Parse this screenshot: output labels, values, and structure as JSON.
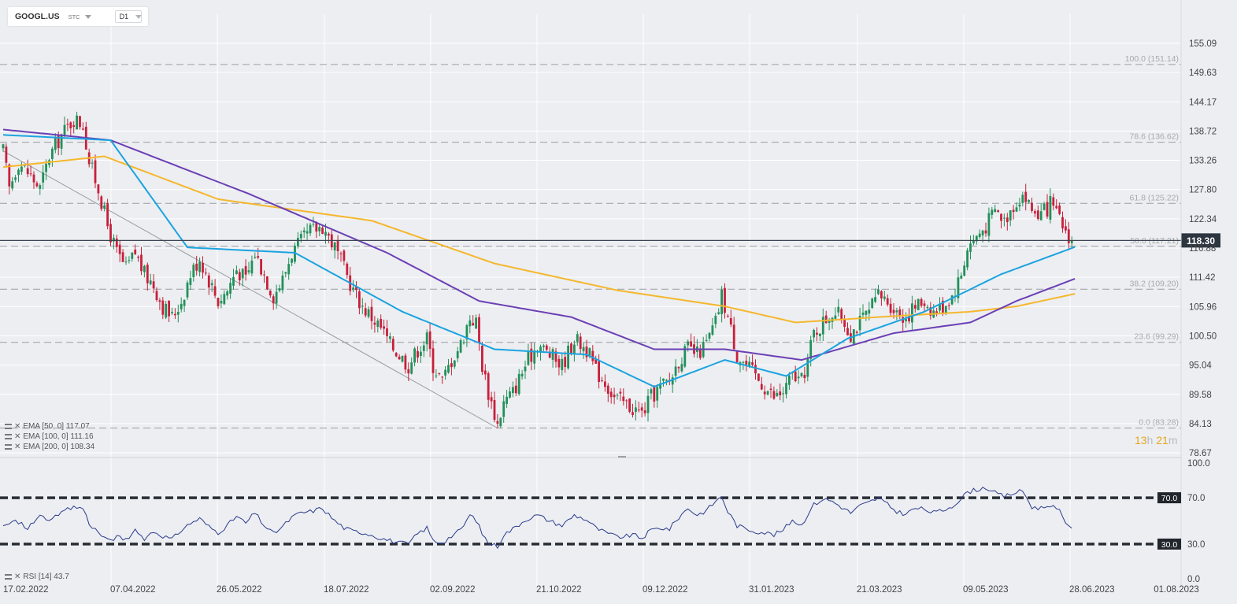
{
  "header": {
    "symbol": "GOOGL.US",
    "market": "STC",
    "timeframe": "D1"
  },
  "indicators": [
    {
      "label": "EMA [50,  0] 117.07",
      "color": "#1aa3e0"
    },
    {
      "label": "EMA [100,  0] 111.16",
      "color": "#6b3fb5"
    },
    {
      "label": "EMA [200,  0] 108.34",
      "color": "#f5b72c"
    }
  ],
  "rsi": {
    "label": "RSI [14] 43.7"
  },
  "countdown": {
    "hours": "13",
    "h_unit": "h",
    "minutes": "21",
    "m_unit": "m"
  },
  "chart_data": {
    "type": "candlestick",
    "price_axis": {
      "ticks": [
        "155.09",
        "149.63",
        "144.17",
        "138.72",
        "133.26",
        "127.80",
        "122.34",
        "116.88",
        "111.42",
        "105.96",
        "100.50",
        "95.04",
        "89.58",
        "84.13",
        "78.67"
      ],
      "current_price": "118.30"
    },
    "x_axis": {
      "labels": [
        "17.02.2022",
        "07.04.2022",
        "26.05.2022",
        "18.07.2022",
        "02.09.2022",
        "21.10.2022",
        "09.12.2022",
        "31.01.2023",
        "21.03.2023",
        "09.05.2023",
        "28.06.2023",
        "01.08.2023"
      ]
    },
    "fibonacci": [
      {
        "label": "100.0 (151.14)",
        "price": 151.14
      },
      {
        "label": "78.6 (136.62)",
        "price": 136.62
      },
      {
        "label": "61.8 (125.22)",
        "price": 125.22
      },
      {
        "label": "50.0 (117.21)",
        "price": 117.21
      },
      {
        "label": "38.2 (109.20)",
        "price": 109.2
      },
      {
        "label": "23.6 (99.29)",
        "price": 99.29
      },
      {
        "label": "0.0 (83.28)",
        "price": 83.28
      }
    ],
    "close_path": [
      [
        0,
        135
      ],
      [
        2,
        128
      ],
      [
        5,
        133
      ],
      [
        8,
        131
      ],
      [
        12,
        128
      ],
      [
        15,
        134
      ],
      [
        19,
        138
      ],
      [
        23,
        141
      ],
      [
        26,
        140
      ],
      [
        28,
        133
      ],
      [
        31,
        128
      ],
      [
        34,
        121
      ],
      [
        37,
        116
      ],
      [
        40,
        113
      ],
      [
        43,
        116
      ],
      [
        46,
        112
      ],
      [
        49,
        110
      ],
      [
        52,
        106
      ],
      [
        55,
        104
      ],
      [
        58,
        107
      ],
      [
        61,
        112
      ],
      [
        64,
        115
      ],
      [
        67,
        111
      ],
      [
        70,
        107
      ],
      [
        73,
        109
      ],
      [
        76,
        113
      ],
      [
        79,
        111
      ],
      [
        82,
        116
      ],
      [
        85,
        112
      ],
      [
        88,
        108
      ],
      [
        91,
        111
      ],
      [
        94,
        116
      ],
      [
        97,
        118
      ],
      [
        100,
        120
      ],
      [
        104,
        121
      ],
      [
        108,
        117
      ],
      [
        111,
        113
      ],
      [
        114,
        109
      ],
      [
        117,
        106
      ],
      [
        120,
        104
      ],
      [
        123,
        102
      ],
      [
        126,
        99
      ],
      [
        129,
        97
      ],
      [
        132,
        95
      ],
      [
        135,
        98
      ],
      [
        138,
        100
      ],
      [
        140,
        95
      ],
      [
        143,
        92
      ],
      [
        146,
        96
      ],
      [
        149,
        99
      ],
      [
        152,
        104
      ],
      [
        154,
        103
      ],
      [
        156,
        95
      ],
      [
        158,
        90
      ],
      [
        160,
        86
      ],
      [
        161,
        84
      ],
      [
        163,
        88
      ],
      [
        166,
        90
      ],
      [
        170,
        95
      ],
      [
        174,
        99
      ],
      [
        178,
        97
      ],
      [
        182,
        95
      ],
      [
        186,
        100
      ],
      [
        190,
        98
      ],
      [
        193,
        94
      ],
      [
        196,
        92
      ],
      [
        199,
        89
      ],
      [
        202,
        88
      ],
      [
        205,
        87
      ],
      [
        208,
        86
      ],
      [
        211,
        89
      ],
      [
        214,
        91
      ],
      [
        217,
        92
      ],
      [
        220,
        96
      ],
      [
        223,
        98
      ],
      [
        226,
        97
      ],
      [
        229,
        99
      ],
      [
        232,
        103
      ],
      [
        234,
        108
      ],
      [
        236,
        104
      ],
      [
        239,
        97
      ],
      [
        242,
        95
      ],
      [
        245,
        93
      ],
      [
        248,
        91
      ],
      [
        251,
        89
      ],
      [
        254,
        90
      ],
      [
        257,
        93
      ],
      [
        260,
        92
      ],
      [
        262,
        96
      ],
      [
        264,
        101
      ],
      [
        267,
        103
      ],
      [
        270,
        105
      ],
      [
        273,
        104
      ],
      [
        276,
        101
      ],
      [
        279,
        103
      ],
      [
        282,
        105
      ],
      [
        285,
        108
      ],
      [
        288,
        107
      ],
      [
        291,
        105
      ],
      [
        294,
        104
      ],
      [
        297,
        106
      ],
      [
        300,
        107
      ],
      [
        303,
        105
      ],
      [
        306,
        106
      ],
      [
        309,
        108
      ],
      [
        312,
        112
      ],
      [
        314,
        117
      ],
      [
        317,
        119
      ],
      [
        320,
        121
      ],
      [
        323,
        124
      ],
      [
        326,
        122
      ],
      [
        329,
        125
      ],
      [
        332,
        127
      ],
      [
        335,
        124
      ],
      [
        338,
        123
      ],
      [
        341,
        125
      ],
      [
        344,
        122
      ],
      [
        346,
        120
      ],
      [
        348,
        118.3
      ]
    ],
    "ema_values": {
      "ema50": [
        [
          0,
          138
        ],
        [
          35,
          137
        ],
        [
          60,
          117
        ],
        [
          95,
          116
        ],
        [
          130,
          105
        ],
        [
          160,
          98
        ],
        [
          190,
          97
        ],
        [
          212,
          91
        ],
        [
          235,
          96
        ],
        [
          255,
          93
        ],
        [
          275,
          100
        ],
        [
          300,
          105
        ],
        [
          325,
          112
        ],
        [
          349,
          117.07
        ]
      ],
      "ema100": [
        [
          0,
          139
        ],
        [
          35,
          137
        ],
        [
          80,
          127
        ],
        [
          125,
          116
        ],
        [
          155,
          107
        ],
        [
          185,
          104
        ],
        [
          212,
          98
        ],
        [
          235,
          98
        ],
        [
          260,
          96
        ],
        [
          290,
          101
        ],
        [
          315,
          103
        ],
        [
          330,
          107
        ],
        [
          349,
          111.16
        ]
      ],
      "ema200": [
        [
          0,
          132
        ],
        [
          33,
          134
        ],
        [
          70,
          126
        ],
        [
          120,
          122
        ],
        [
          160,
          114
        ],
        [
          200,
          109
        ],
        [
          235,
          106
        ],
        [
          258,
          103
        ],
        [
          285,
          104
        ],
        [
          315,
          105
        ],
        [
          330,
          106
        ],
        [
          349,
          108.34
        ]
      ]
    },
    "rsi_values": [
      [
        0,
        45
      ],
      [
        4,
        50
      ],
      [
        8,
        44
      ],
      [
        12,
        54
      ],
      [
        16,
        51
      ],
      [
        19,
        57
      ],
      [
        23,
        62
      ],
      [
        26,
        61
      ],
      [
        28,
        48
      ],
      [
        31,
        40
      ],
      [
        34,
        33
      ],
      [
        37,
        36
      ],
      [
        40,
        34
      ],
      [
        43,
        41
      ],
      [
        46,
        35
      ],
      [
        49,
        41
      ],
      [
        52,
        37
      ],
      [
        55,
        34
      ],
      [
        58,
        42
      ],
      [
        61,
        48
      ],
      [
        64,
        52
      ],
      [
        67,
        45
      ],
      [
        70,
        40
      ],
      [
        73,
        46
      ],
      [
        76,
        54
      ],
      [
        79,
        48
      ],
      [
        82,
        57
      ],
      [
        85,
        46
      ],
      [
        88,
        39
      ],
      [
        91,
        45
      ],
      [
        94,
        53
      ],
      [
        97,
        57
      ],
      [
        100,
        58
      ],
      [
        104,
        61
      ],
      [
        108,
        50
      ],
      [
        111,
        44
      ],
      [
        114,
        41
      ],
      [
        117,
        40
      ],
      [
        120,
        38
      ],
      [
        123,
        35
      ],
      [
        126,
        33
      ],
      [
        129,
        31
      ],
      [
        132,
        30
      ],
      [
        135,
        39
      ],
      [
        138,
        44
      ],
      [
        140,
        33
      ],
      [
        143,
        31
      ],
      [
        146,
        37
      ],
      [
        149,
        42
      ],
      [
        152,
        55
      ],
      [
        154,
        51
      ],
      [
        156,
        39
      ],
      [
        158,
        31
      ],
      [
        160,
        29
      ],
      [
        161,
        28
      ],
      [
        163,
        38
      ],
      [
        166,
        43
      ],
      [
        170,
        51
      ],
      [
        174,
        55
      ],
      [
        178,
        50
      ],
      [
        182,
        46
      ],
      [
        186,
        55
      ],
      [
        190,
        51
      ],
      [
        193,
        44
      ],
      [
        196,
        40
      ],
      [
        199,
        37
      ],
      [
        202,
        36
      ],
      [
        205,
        38
      ],
      [
        208,
        35
      ],
      [
        211,
        42
      ],
      [
        214,
        44
      ],
      [
        217,
        43
      ],
      [
        220,
        53
      ],
      [
        223,
        61
      ],
      [
        226,
        55
      ],
      [
        229,
        59
      ],
      [
        232,
        67
      ],
      [
        234,
        71
      ],
      [
        236,
        58
      ],
      [
        239,
        46
      ],
      [
        242,
        43
      ],
      [
        245,
        41
      ],
      [
        248,
        40
      ],
      [
        251,
        38
      ],
      [
        254,
        42
      ],
      [
        257,
        51
      ],
      [
        260,
        46
      ],
      [
        262,
        56
      ],
      [
        264,
        64
      ],
      [
        267,
        69
      ],
      [
        270,
        67
      ],
      [
        273,
        62
      ],
      [
        276,
        57
      ],
      [
        279,
        63
      ],
      [
        282,
        66
      ],
      [
        285,
        70
      ],
      [
        288,
        64
      ],
      [
        291,
        58
      ],
      [
        294,
        56
      ],
      [
        297,
        61
      ],
      [
        300,
        60
      ],
      [
        303,
        57
      ],
      [
        306,
        59
      ],
      [
        309,
        63
      ],
      [
        312,
        69
      ],
      [
        314,
        75
      ],
      [
        317,
        77
      ],
      [
        320,
        79
      ],
      [
        323,
        74
      ],
      [
        326,
        71
      ],
      [
        329,
        74
      ],
      [
        332,
        76
      ],
      [
        335,
        62
      ],
      [
        338,
        61
      ],
      [
        341,
        64
      ],
      [
        344,
        58
      ],
      [
        346,
        48
      ],
      [
        348,
        43.7
      ]
    ],
    "rsi_axis": {
      "ticks": [
        "100.0",
        "70.0",
        "30.0",
        "0.0"
      ],
      "levels": [
        {
          "label": "70.0",
          "value": 70
        },
        {
          "label": "30.0",
          "value": 30
        }
      ]
    },
    "trendline": {
      "from": [
        0,
        135
      ],
      "to": [
        161,
        83.28
      ]
    },
    "ylim": [
      78.67,
      158
    ]
  }
}
